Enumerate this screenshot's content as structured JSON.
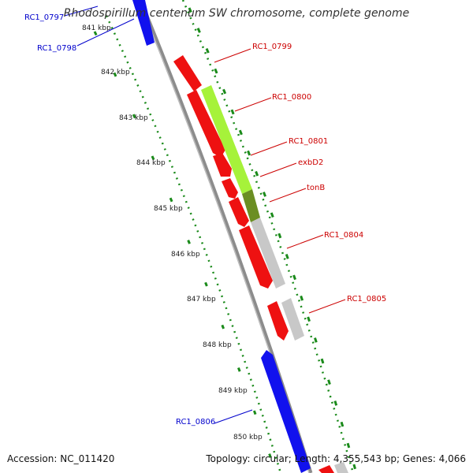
{
  "title": "Rhodospirillum centenum SW chromosome, complete genome",
  "footer": {
    "accession": "Accession: NC_011420",
    "summary": "Topology: circular; Length: 4,355,543 bp; Genes: 4,066"
  },
  "colors": {
    "forward_gene": "#ee1111",
    "reverse_gene": "#1111ee",
    "highlight_lime": "#a6f23a",
    "highlight_olive": "#6b8e23",
    "gray_feature": "#c8c8c8",
    "backbone": "#8c8c8c",
    "tick": "#1a8a1a",
    "label_red": "#cc0000",
    "label_blue": "#0000cc"
  },
  "scale": {
    "unit": "kbp",
    "ticks": [
      "841 kbp",
      "842 kbp",
      "843 kbp",
      "844 kbp",
      "845 kbp",
      "846 kbp",
      "847 kbp",
      "848 kbp",
      "849 kbp",
      "850 kbp"
    ]
  },
  "genes": [
    {
      "label": "RC1_0797",
      "strand": "reverse",
      "color": "blue"
    },
    {
      "label": "RC1_0798",
      "strand": "reverse",
      "color": "blue"
    },
    {
      "label": "RC1_0799",
      "strand": "forward",
      "color": "red"
    },
    {
      "label": "RC1_0800",
      "strand": "forward",
      "color": "red"
    },
    {
      "label": "RC1_0801",
      "strand": "forward",
      "color": "red"
    },
    {
      "label": "exbD2",
      "strand": "forward",
      "color": "red"
    },
    {
      "label": "tonB",
      "strand": "forward",
      "color": "red"
    },
    {
      "label": "RC1_0804",
      "strand": "forward",
      "color": "red"
    },
    {
      "label": "RC1_0805",
      "strand": "forward",
      "color": "red"
    },
    {
      "label": "RC1_0806",
      "strand": "reverse",
      "color": "blue"
    }
  ]
}
